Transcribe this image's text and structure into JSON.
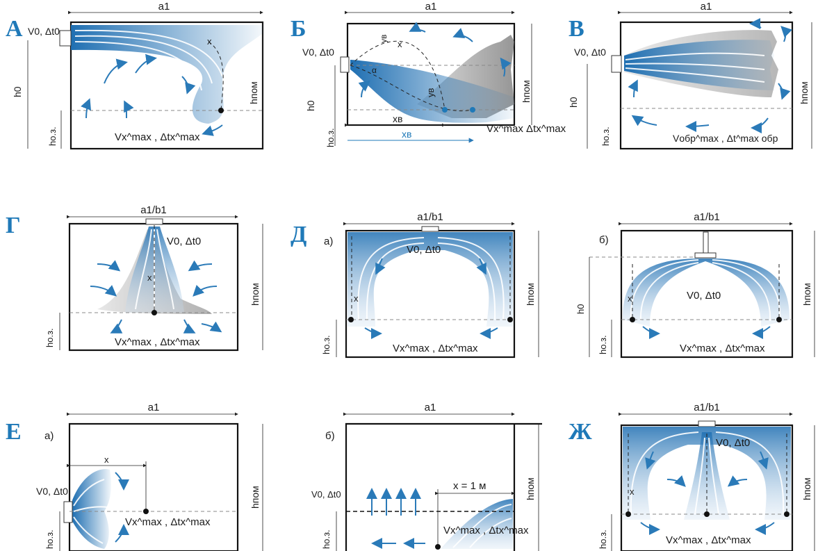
{
  "panels": [
    {
      "letter": "А",
      "sub": "",
      "width": "a1",
      "height": "hпом",
      "h0": "h0",
      "hoz": "hо.з.",
      "src": "V0, Δt0",
      "res": "Vx^max , Δtx^max",
      "x": "x"
    },
    {
      "letter": "Б",
      "sub": "",
      "width": "a1",
      "height": "hпом",
      "h0": "h0",
      "hoz": "hо.з.",
      "src": "V0, Δt0",
      "res": "Vx^max Δtx^max",
      "x": "x",
      "yv": "yв",
      "xv": "xв",
      "alpha": "α"
    },
    {
      "letter": "В",
      "sub": "",
      "width": "a1",
      "height": "hпом",
      "h0": "h0",
      "hoz": "hо.з.",
      "src": "V0, Δt0",
      "res": "Vобр^max , Δt^max обр"
    },
    {
      "letter": "Г",
      "sub": "",
      "width": "a1/b1",
      "height": "hпом",
      "hoz": "hо.з.",
      "src": "V0, Δt0",
      "res": "Vx^max , Δtx^max",
      "x": "x"
    },
    {
      "letter": "Д",
      "sub": "а)",
      "width": "a1/b1",
      "height": "hпом",
      "hoz": "hо.з.",
      "src": "V0, Δt0",
      "res": "Vx^max , Δtx^max",
      "x": "x"
    },
    {
      "letter": "",
      "sub": "б)",
      "width": "a1/b1",
      "height": "hпом",
      "h0": "h0",
      "hoz": "hо.з.",
      "src": "V0, Δt0",
      "res": "Vx^max , Δtx^max",
      "x": "x"
    },
    {
      "letter": "Е",
      "sub": "а)",
      "width": "a1",
      "height": "hпом",
      "hoz": "hо.з.",
      "src": "V0, Δt0",
      "res": "Vx^max , Δtx^max",
      "x": "x"
    },
    {
      "letter": "",
      "sub": "б)",
      "width": "a1",
      "height": "hпом",
      "hoz": "hо.з.",
      "src": "V0, Δt0",
      "res": "Vx^max , Δtx^max",
      "x": "x = 1 м"
    },
    {
      "letter": "Ж",
      "sub": "",
      "width": "a1/b1",
      "height": "hпом",
      "hoz": "hо.з.",
      "src": "V0, Δt0",
      "res": "Vx^max , Δtx^max",
      "x": "x"
    }
  ],
  "colors": {
    "jet": "#1f6fb2",
    "accent": "#1f79b8",
    "gray": "#8e8e8e"
  }
}
